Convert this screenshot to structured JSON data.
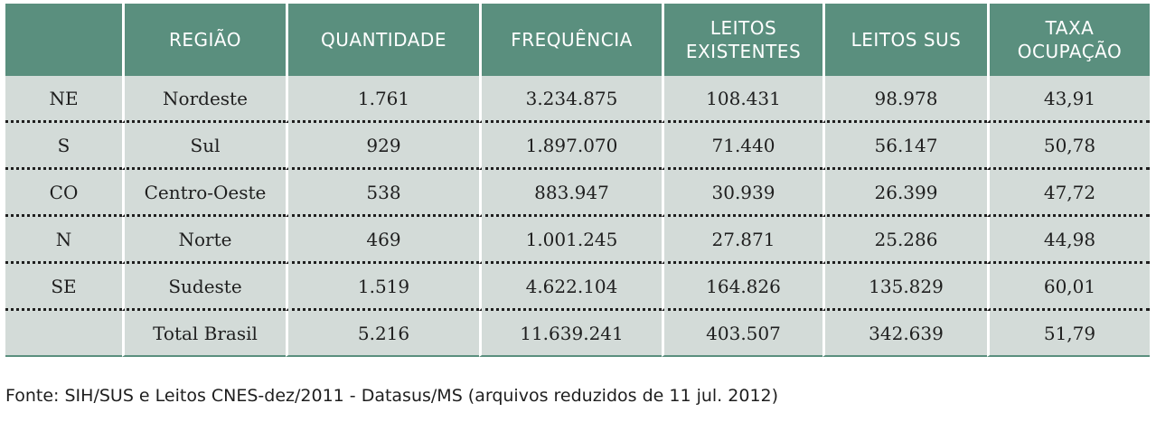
{
  "table": {
    "headers": [
      "",
      "REGIÃO",
      "QUANTIDADE",
      "FREQUÊNCIA",
      "LEITOS EXISTENTES",
      "LEITOS SUS",
      "TAXA OCUPAÇÃO"
    ],
    "rows": [
      [
        "NE",
        "Nordeste",
        "1.761",
        "3.234.875",
        "108.431",
        "98.978",
        "43,91"
      ],
      [
        "S",
        "Sul",
        "929",
        "1.897.070",
        "71.440",
        "56.147",
        "50,78"
      ],
      [
        "CO",
        "Centro-Oeste",
        "538",
        "883.947",
        "30.939",
        "26.399",
        "47,72"
      ],
      [
        "N",
        "Norte",
        "469",
        "1.001.245",
        "27.871",
        "25.286",
        "44,98"
      ],
      [
        "SE",
        "Sudeste",
        "1.519",
        "4.622.104",
        "164.826",
        "135.829",
        "60,01"
      ],
      [
        "",
        "Total Brasil",
        "5.216",
        "11.639.241",
        "403.507",
        "342.639",
        "51,79"
      ]
    ]
  },
  "footer": {
    "source": "Fonte: SIH/SUS e Leitos CNES-dez/2011 - Datasus/MS (arquivos reduzidos de 11 jul. 2012)"
  },
  "colors": {
    "header_bg": "#5a8f7e",
    "cell_bg": "#d3dbd8"
  }
}
